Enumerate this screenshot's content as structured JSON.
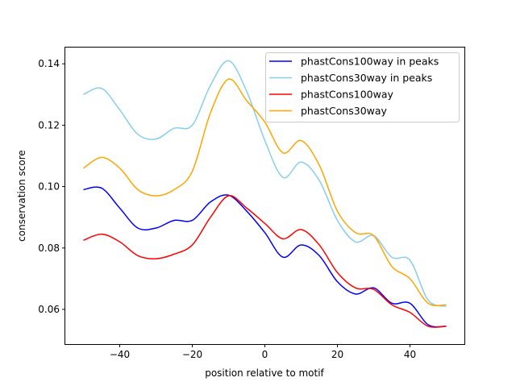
{
  "chart_data": {
    "type": "line",
    "title": "",
    "xlabel": "position relative to motif",
    "ylabel": "conservation score",
    "xlim": [
      -55,
      55
    ],
    "ylim": [
      0.0487,
      0.1453
    ],
    "xticks": [
      -40,
      -20,
      0,
      20,
      40
    ],
    "xtick_labels": [
      "−40",
      "−20",
      "0",
      "20",
      "40"
    ],
    "yticks": [
      0.06,
      0.08,
      0.1,
      0.12,
      0.14
    ],
    "ytick_labels": [
      "0.06",
      "0.08",
      "0.10",
      "0.12",
      "0.14"
    ],
    "grid": false,
    "legend_position": "top-right",
    "x": [
      -50,
      -45,
      -40,
      -35,
      -30,
      -25,
      -20,
      -15,
      -10,
      -5,
      0,
      5,
      10,
      15,
      20,
      25,
      30,
      35,
      40,
      45,
      50
    ],
    "series": [
      {
        "name": "phastCons100way in peaks",
        "color": "#0000ff",
        "values": [
          0.099,
          0.0995,
          0.093,
          0.0865,
          0.0865,
          0.089,
          0.089,
          0.095,
          0.0972,
          0.092,
          0.085,
          0.077,
          0.081,
          0.0775,
          0.069,
          0.065,
          0.067,
          0.062,
          0.062,
          0.055,
          0.0545
        ]
      },
      {
        "name": "phastCons30way in peaks",
        "color": "#87ceeb",
        "values": [
          0.13,
          0.132,
          0.125,
          0.117,
          0.1155,
          0.119,
          0.12,
          0.133,
          0.141,
          0.131,
          0.115,
          0.103,
          0.108,
          0.102,
          0.089,
          0.082,
          0.084,
          0.077,
          0.076,
          0.063,
          0.061
        ]
      },
      {
        "name": "phastCons100way",
        "color": "#ff0000",
        "values": [
          0.0825,
          0.0845,
          0.082,
          0.0775,
          0.0765,
          0.078,
          0.081,
          0.09,
          0.097,
          0.093,
          0.088,
          0.083,
          0.086,
          0.081,
          0.072,
          0.067,
          0.0665,
          0.0615,
          0.059,
          0.0545,
          0.0545
        ]
      },
      {
        "name": "phastCons30way",
        "color": "#ffa500",
        "values": [
          0.106,
          0.1095,
          0.106,
          0.099,
          0.097,
          0.099,
          0.105,
          0.124,
          0.135,
          0.128,
          0.121,
          0.111,
          0.115,
          0.107,
          0.092,
          0.085,
          0.084,
          0.074,
          0.07,
          0.062,
          0.0615
        ]
      }
    ]
  }
}
